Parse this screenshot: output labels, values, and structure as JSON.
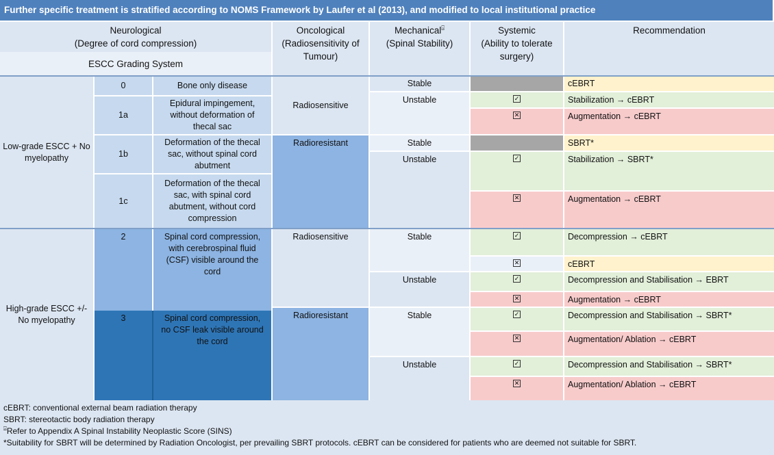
{
  "banner": "Further specific treatment is stratified according to NOMS Framework by Laufer et al (2013), and modified to local institutional practice",
  "header": {
    "neuro_line1": "Neurological",
    "neuro_line2": "(Degree of cord compression)",
    "escc": "ESCC Grading System",
    "onco_line1": "Oncological",
    "onco_line2": "(Radiosensitivity of",
    "onco_line3": "Tumour)",
    "mech_line1": "Mechanical",
    "mech_sup": "⍓",
    "mech_line2": "(Spinal Stability)",
    "sys_line1": "Systemic",
    "sys_line2": "(Ability to tolerate",
    "sys_line3": "surgery)",
    "rec": "Recommendation"
  },
  "groups": {
    "low": "Low-grade ESCC + No myelopathy",
    "high": "High-grade ESCC +/- No myelopathy"
  },
  "grades": [
    {
      "code": "0",
      "desc": "Bone only disease"
    },
    {
      "code": "1a",
      "desc": "Epidural impingement, without deformation of thecal sac"
    },
    {
      "code": "1b",
      "desc": "Deformation of the thecal sac, without spinal cord abutment"
    },
    {
      "code": "1c",
      "desc": "Deformation of the thecal sac, with spinal cord abutment, without cord compression"
    },
    {
      "code": "2",
      "desc": "Spinal cord compression, with cerebrospinal fluid (CSF) visible around the cord"
    },
    {
      "code": "3",
      "desc": "Spinal cord compression, no CSF leak visible around the cord"
    }
  ],
  "onco": {
    "radiosensitive": "Radiosensitive",
    "radioresistant": "Radioresistant"
  },
  "mech": {
    "stable": "Stable",
    "unstable": "Unstable"
  },
  "symbols": {
    "check": "✓",
    "cross": "✕"
  },
  "recs": [
    "cEBRT",
    "Stabilization → cEBRT",
    "Augmentation → cEBRT",
    "SBRT*",
    "Stabilization → SBRT*",
    "Augmentation → cEBRT",
    "Decompression → cEBRT",
    "cEBRT",
    "Decompression and Stabilisation → EBRT",
    "Augmentation → cEBRT",
    "Decompression and Stabilisation → SBRT*",
    "Augmentation/ Ablation → cEBRT",
    "Decompression and Stabilisation → SBRT*",
    "Augmentation/ Ablation → cEBRT"
  ],
  "footer": {
    "line1": "cEBRT: conventional external beam radiation therapy",
    "line2": "SBRT: stereotactic body radiation therapy",
    "line3_sym": "⍓",
    "line3": "Refer to Appendix A Spinal Instability Neoplastic Score (SINS)",
    "line4": "*Suitability for SBRT will be determined by Radiation Oncologist, per prevailing SBRT protocols. cEBRT can be considered for patients who are deemed not suitable for SBRT."
  }
}
